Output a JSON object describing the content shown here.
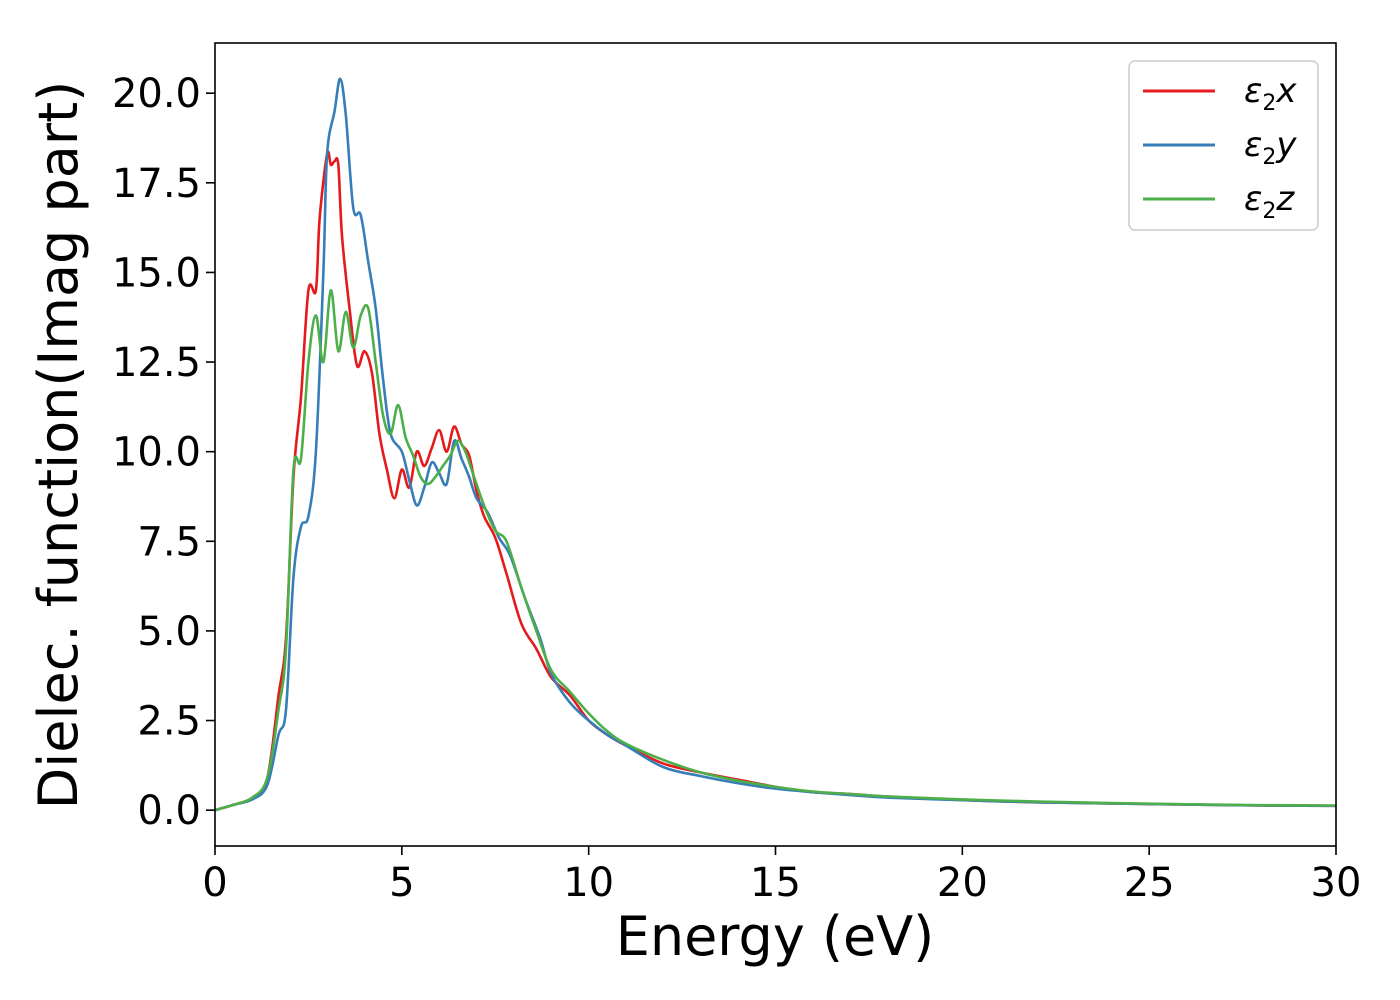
{
  "chart_data": {
    "type": "line",
    "xlabel": "Energy (eV)",
    "ylabel": "Dielec. function(Imag part)",
    "xlim": [
      0,
      30
    ],
    "ylim": [
      -1.0,
      21.4
    ],
    "xticks": [
      0,
      5,
      10,
      15,
      20,
      25,
      30
    ],
    "xtick_labels": [
      "0",
      "5",
      "10",
      "15",
      "20",
      "25",
      "30"
    ],
    "yticks": [
      0,
      2.5,
      5,
      7.5,
      10,
      12.5,
      15,
      17.5,
      20
    ],
    "ytick_labels": [
      "0.0",
      "2.5",
      "5.0",
      "7.5",
      "10.0",
      "12.5",
      "15.0",
      "17.5",
      "20.0"
    ],
    "grid": false,
    "legend_position": "top-right",
    "series": [
      {
        "name": "ε2x",
        "legend": {
          "symbol": "ε",
          "sub": "2",
          "suffix": "x"
        },
        "color": "#e41a1c",
        "x": [
          0,
          0.5,
          1.0,
          1.4,
          1.7,
          1.9,
          2.1,
          2.3,
          2.5,
          2.7,
          2.8,
          3.0,
          3.1,
          3.2,
          3.3,
          3.4,
          3.6,
          3.8,
          4.0,
          4.2,
          4.4,
          4.6,
          4.8,
          5.0,
          5.2,
          5.4,
          5.6,
          5.8,
          6.0,
          6.2,
          6.4,
          6.6,
          6.8,
          7.0,
          7.2,
          7.5,
          7.8,
          8.2,
          8.6,
          9.0,
          9.5,
          10.0,
          10.5,
          11.0,
          12.0,
          13.0,
          14.0,
          15.0,
          16.0,
          17.0,
          18.0,
          20.0,
          22.0,
          25.0,
          28.0,
          30.0
        ],
        "y": [
          0.0,
          0.15,
          0.35,
          0.9,
          3.2,
          4.8,
          9.3,
          11.5,
          14.5,
          14.5,
          16.5,
          18.3,
          18.0,
          18.1,
          18.0,
          16.0,
          14.0,
          12.4,
          12.8,
          12.2,
          10.5,
          9.5,
          8.7,
          9.5,
          9.0,
          10.0,
          9.6,
          10.1,
          10.6,
          10.0,
          10.7,
          10.2,
          9.9,
          8.9,
          8.2,
          7.6,
          6.6,
          5.2,
          4.5,
          3.7,
          3.2,
          2.5,
          2.1,
          1.8,
          1.3,
          1.05,
          0.85,
          0.65,
          0.5,
          0.45,
          0.38,
          0.28,
          0.22,
          0.17,
          0.13,
          0.12
        ]
      },
      {
        "name": "ε2y",
        "legend": {
          "symbol": "ε",
          "sub": "2",
          "suffix": "y"
        },
        "color": "#377eb8",
        "x": [
          0,
          0.5,
          1.0,
          1.4,
          1.7,
          1.9,
          2.1,
          2.3,
          2.5,
          2.7,
          2.9,
          3.0,
          3.2,
          3.35,
          3.5,
          3.7,
          3.9,
          4.1,
          4.3,
          4.5,
          4.7,
          5.0,
          5.2,
          5.4,
          5.6,
          5.8,
          6.0,
          6.2,
          6.4,
          6.6,
          6.8,
          7.0,
          7.3,
          7.6,
          7.9,
          8.3,
          8.7,
          9.0,
          9.5,
          10.0,
          10.5,
          11.0,
          12.0,
          13.0,
          14.0,
          15.0,
          16.0,
          17.0,
          18.0,
          20.0,
          22.0,
          25.0,
          28.0,
          30.0
        ],
        "y": [
          0.0,
          0.15,
          0.3,
          0.7,
          2.1,
          2.8,
          6.5,
          7.9,
          8.2,
          10.0,
          15.0,
          18.3,
          19.5,
          20.4,
          19.4,
          16.8,
          16.6,
          15.3,
          14.0,
          12.0,
          10.5,
          10.0,
          9.2,
          8.5,
          9.0,
          9.7,
          9.4,
          9.1,
          10.3,
          9.8,
          9.3,
          8.7,
          8.3,
          7.6,
          7.1,
          5.9,
          4.8,
          3.8,
          3.0,
          2.5,
          2.1,
          1.8,
          1.2,
          0.95,
          0.75,
          0.6,
          0.5,
          0.42,
          0.35,
          0.28,
          0.22,
          0.17,
          0.13,
          0.12
        ]
      },
      {
        "name": "ε2z",
        "legend": {
          "symbol": "ε",
          "sub": "2",
          "suffix": "z"
        },
        "color": "#4daf4a",
        "x": [
          0,
          0.5,
          1.0,
          1.4,
          1.7,
          1.9,
          2.1,
          2.3,
          2.5,
          2.7,
          2.9,
          3.1,
          3.3,
          3.5,
          3.7,
          3.9,
          4.1,
          4.3,
          4.5,
          4.7,
          4.9,
          5.1,
          5.3,
          5.5,
          5.7,
          5.9,
          6.1,
          6.3,
          6.5,
          6.7,
          6.9,
          7.2,
          7.5,
          7.8,
          8.2,
          8.6,
          9.0,
          9.5,
          10.0,
          10.5,
          11.0,
          12.0,
          13.0,
          14.0,
          15.0,
          16.0,
          17.0,
          18.0,
          20.0,
          22.0,
          25.0,
          28.0,
          30.0
        ],
        "y": [
          0.0,
          0.15,
          0.35,
          0.9,
          2.8,
          4.5,
          9.5,
          9.8,
          12.5,
          13.8,
          12.5,
          14.5,
          12.8,
          13.9,
          12.9,
          13.8,
          14.0,
          12.5,
          11.0,
          10.5,
          11.3,
          10.4,
          9.9,
          9.3,
          9.1,
          9.3,
          9.6,
          9.9,
          10.3,
          10.0,
          9.4,
          8.5,
          7.8,
          7.5,
          6.2,
          5.0,
          3.9,
          3.3,
          2.7,
          2.2,
          1.85,
          1.4,
          1.05,
          0.82,
          0.65,
          0.52,
          0.45,
          0.38,
          0.3,
          0.24,
          0.18,
          0.14,
          0.13
        ]
      }
    ]
  }
}
